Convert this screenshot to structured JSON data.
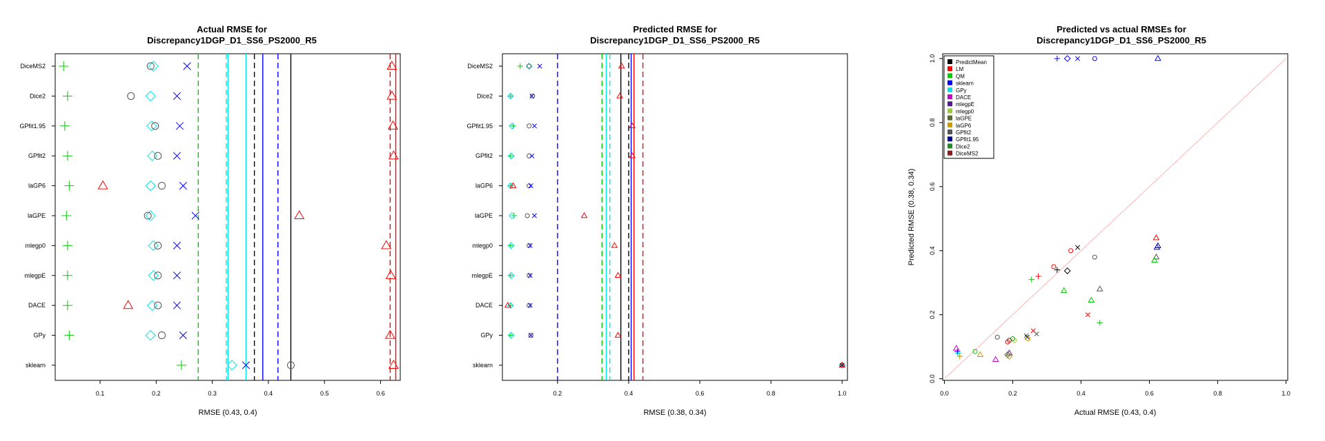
{
  "colors": {
    "PredictMean": "#000000",
    "LM": "#ff0000",
    "QM": "#00cc00",
    "sklearn": "#0000ff",
    "GPy": "#00e5e5",
    "DACE": "#cc00cc",
    "mlegpE": "#551a8b",
    "mlegp0": "#99cc33",
    "laGPE": "#556b2f",
    "laGP6": "#cc9900",
    "GPfit2": "#555555",
    "GPfit1.95": "#00008b",
    "Dice2": "#228b22",
    "DiceMS2": "#8b1a1a"
  },
  "chart_data": [
    {
      "type": "scatter",
      "title": [
        "Actual RMSE for",
        "Discrepancy1DGP_D1_SS6_PS2000_R5"
      ],
      "xlabel": "RMSE (0.43, 0.4)",
      "xlim": [
        0.02,
        0.635
      ],
      "xticks": [
        "0.1",
        "0.2",
        "0.3",
        "0.4",
        "0.5",
        "0.6"
      ],
      "categories": [
        "DiceMS2",
        "Dice2",
        "GPfit1.95",
        "GPfit2",
        "laGP6",
        "laGPE",
        "mlegp0",
        "mlegpE",
        "DACE",
        "GPy",
        "sklearn"
      ],
      "series": [
        {
          "key": "QM",
          "marker": "plus",
          "values": [
            0.035,
            0.042,
            0.037,
            0.042,
            0.045,
            0.04,
            0.042,
            0.042,
            0.042,
            0.045,
            0.245
          ]
        },
        {
          "key": "GPy",
          "marker": "diamond",
          "values": [
            0.195,
            0.19,
            0.192,
            0.193,
            0.19,
            0.19,
            0.195,
            0.195,
            0.193,
            0.19,
            0.335
          ]
        },
        {
          "key": "GPfit2",
          "marker": "circle",
          "values": [
            0.19,
            0.155,
            0.198,
            0.203,
            0.21,
            0.185,
            0.203,
            0.203,
            0.203,
            0.21,
            0.44
          ]
        },
        {
          "key": "sklearn",
          "marker": "cross",
          "values": [
            0.255,
            0.237,
            0.242,
            0.237,
            0.248,
            0.27,
            0.237,
            0.237,
            0.237,
            0.248,
            0.36
          ]
        },
        {
          "key": "LM",
          "marker": "triangle",
          "values": [
            0.62,
            0.62,
            0.622,
            0.623,
            0.105,
            0.455,
            0.61,
            0.618,
            0.15,
            0.617,
            0.623
          ]
        }
      ],
      "vlines": [
        {
          "x": 0.275,
          "key": "QM",
          "dashed": true
        },
        {
          "x": 0.325,
          "key": "GPy",
          "dashed": true
        },
        {
          "x": 0.328,
          "key": "GPy",
          "dashed": false
        },
        {
          "x": 0.36,
          "key": "GPy",
          "dashed": false
        },
        {
          "x": 0.375,
          "key": "PredictMean",
          "dashed": true
        },
        {
          "x": 0.39,
          "key": "sklearn",
          "dashed": false
        },
        {
          "x": 0.417,
          "key": "sklearn",
          "dashed": true
        },
        {
          "x": 0.44,
          "key": "PredictMean",
          "dashed": false
        },
        {
          "x": 0.617,
          "key": "LM",
          "dashed": true
        },
        {
          "x": 0.627,
          "key": "LM",
          "dashed": false
        }
      ]
    },
    {
      "type": "scatter",
      "title": [
        "Predicted RMSE for",
        "Discrepancy1DGP_D1_SS6_PS2000_R5"
      ],
      "xlabel": "RMSE (0.38, 0.34)",
      "xlim": [
        0.045,
        1.015
      ],
      "xticks": [
        "0.2",
        "0.4",
        "0.6",
        "0.8",
        "1.0"
      ],
      "categories": [
        "DiceMS2",
        "Dice2",
        "GPfit1.95",
        "GPfit2",
        "laGP6",
        "laGPE",
        "mlegp0",
        "mlegpE",
        "DACE",
        "GPy",
        "sklearn"
      ],
      "series": [
        {
          "key": "QM",
          "marker": "plus",
          "values": [
            0.095,
            0.068,
            0.075,
            0.068,
            0.068,
            0.078,
            0.068,
            0.068,
            0.068,
            0.068,
            1.0
          ]
        },
        {
          "key": "GPy",
          "marker": "diamond",
          "values": [
            0.12,
            0.068,
            0.072,
            0.07,
            0.068,
            0.072,
            0.07,
            0.07,
            0.068,
            0.07,
            1.0
          ]
        },
        {
          "key": "GPfit2",
          "marker": "circle",
          "values": [
            0.12,
            0.13,
            0.12,
            0.12,
            0.12,
            0.115,
            0.12,
            0.12,
            0.12,
            0.125,
            1.0
          ]
        },
        {
          "key": "sklearn",
          "marker": "cross",
          "values": [
            0.15,
            0.128,
            0.135,
            0.128,
            0.125,
            0.135,
            0.123,
            0.123,
            0.123,
            0.125,
            1.0
          ]
        },
        {
          "key": "LM",
          "marker": "triangle",
          "values": [
            0.38,
            0.375,
            0.41,
            0.41,
            0.075,
            0.275,
            0.36,
            0.37,
            0.06,
            0.37,
            1.0
          ]
        }
      ],
      "vlines": [
        {
          "x": 0.2,
          "key": "sklearn",
          "dashed": true
        },
        {
          "x": 0.325,
          "key": "QM",
          "dashed": true
        },
        {
          "x": 0.337,
          "key": "GPy",
          "dashed": false
        },
        {
          "x": 0.347,
          "key": "GPy",
          "dashed": true
        },
        {
          "x": 0.378,
          "key": "PredictMean",
          "dashed": false
        },
        {
          "x": 0.4,
          "key": "PredictMean",
          "dashed": true
        },
        {
          "x": 0.407,
          "key": "sklearn",
          "dashed": false
        },
        {
          "x": 0.415,
          "key": "LM",
          "dashed": false
        },
        {
          "x": 0.44,
          "key": "LM",
          "dashed": true
        }
      ]
    },
    {
      "type": "scatter",
      "title": [
        "Predicted vs actual RMSEs for",
        "Discrepancy1DGP_D1_SS6_PS2000_R5"
      ],
      "xlabel": "Actual RMSE (0.43, 0.4)",
      "ylabel": "Predicted RMSE (0.38, 0.34)",
      "xlim": [
        -0.005,
        1.005
      ],
      "ylim": [
        -0.005,
        1.015
      ],
      "xticks": [
        "0.0",
        "0.2",
        "0.4",
        "0.6",
        "0.8",
        "1.0"
      ],
      "yticks": [
        "0.0",
        "0.2",
        "0.4",
        "0.6",
        "0.8",
        "1.0"
      ],
      "diagonal_color": "#ffb3b3",
      "legend_position": "top-left",
      "legend": [
        "PredictMean",
        "LM",
        "QM",
        "sklearn",
        "GPy",
        "DACE",
        "mlegpE",
        "mlegp0",
        "laGPE",
        "laGP6",
        "GPfit2",
        "GPfit1.95",
        "Dice2",
        "DiceMS2"
      ],
      "points": [
        {
          "key": "sklearn",
          "marker": "plus",
          "x": 0.33,
          "y": 1.0
        },
        {
          "key": "sklearn",
          "marker": "diamond",
          "x": 0.36,
          "y": 1.0
        },
        {
          "key": "sklearn",
          "marker": "cross",
          "x": 0.39,
          "y": 1.0
        },
        {
          "key": "sklearn",
          "marker": "circle",
          "x": 0.44,
          "y": 1.0
        },
        {
          "key": "sklearn",
          "marker": "triangle",
          "x": 0.625,
          "y": 1.0
        },
        {
          "key": "LM",
          "marker": "triangle",
          "x": 0.62,
          "y": 0.44
        },
        {
          "key": "GPfit1.95",
          "marker": "triangle",
          "x": 0.625,
          "y": 0.415
        },
        {
          "key": "sklearn",
          "marker": "triangle",
          "x": 0.622,
          "y": 0.41
        },
        {
          "key": "PredictMean",
          "marker": "cross",
          "x": 0.39,
          "y": 0.41
        },
        {
          "key": "LM",
          "marker": "circle",
          "x": 0.37,
          "y": 0.4
        },
        {
          "key": "GPfit2",
          "marker": "triangle",
          "x": 0.62,
          "y": 0.38
        },
        {
          "key": "QM",
          "marker": "triangle",
          "x": 0.615,
          "y": 0.37
        },
        {
          "key": "GPfit2",
          "marker": "circle",
          "x": 0.44,
          "y": 0.38
        },
        {
          "key": "LM",
          "marker": "circle",
          "x": 0.32,
          "y": 0.35
        },
        {
          "key": "PredictMean",
          "marker": "plus",
          "x": 0.33,
          "y": 0.34
        },
        {
          "key": "PredictMean",
          "marker": "diamond",
          "x": 0.36,
          "y": 0.337
        },
        {
          "key": "LM",
          "marker": "plus",
          "x": 0.275,
          "y": 0.32
        },
        {
          "key": "QM",
          "marker": "plus",
          "x": 0.255,
          "y": 0.31
        },
        {
          "key": "GPfit2",
          "marker": "triangle",
          "x": 0.455,
          "y": 0.28
        },
        {
          "key": "QM",
          "marker": "triangle",
          "x": 0.35,
          "y": 0.275
        },
        {
          "key": "QM",
          "marker": "triangle",
          "x": 0.43,
          "y": 0.245
        },
        {
          "key": "LM",
          "marker": "cross",
          "x": 0.42,
          "y": 0.2
        },
        {
          "key": "QM",
          "marker": "plus",
          "x": 0.455,
          "y": 0.175
        },
        {
          "key": "LM",
          "marker": "cross",
          "x": 0.26,
          "y": 0.15
        },
        {
          "key": "GPfit2",
          "marker": "cross",
          "x": 0.27,
          "y": 0.14
        },
        {
          "key": "GPfit2",
          "marker": "circle",
          "x": 0.155,
          "y": 0.13
        },
        {
          "key": "laGPE",
          "marker": "cross",
          "x": 0.24,
          "y": 0.135
        },
        {
          "key": "GPfit1.95",
          "marker": "cross",
          "x": 0.242,
          "y": 0.13
        },
        {
          "key": "laGP6",
          "marker": "circle",
          "x": 0.245,
          "y": 0.125
        },
        {
          "key": "Dice2",
          "marker": "circle",
          "x": 0.2,
          "y": 0.125
        },
        {
          "key": "DiceMS2",
          "marker": "circle",
          "x": 0.19,
          "y": 0.12
        },
        {
          "key": "LM",
          "marker": "circle",
          "x": 0.185,
          "y": 0.115
        },
        {
          "key": "mlegp0",
          "marker": "circle",
          "x": 0.205,
          "y": 0.12
        },
        {
          "key": "DACE",
          "marker": "triangle",
          "x": 0.15,
          "y": 0.06
        },
        {
          "key": "mlegpE",
          "marker": "triangle",
          "x": 0.19,
          "y": 0.08
        },
        {
          "key": "laGP6",
          "marker": "diamond",
          "x": 0.19,
          "y": 0.07
        },
        {
          "key": "laGPE",
          "marker": "diamond",
          "x": 0.185,
          "y": 0.075
        },
        {
          "key": "QM",
          "marker": "circle",
          "x": 0.09,
          "y": 0.085
        },
        {
          "key": "laGP6",
          "marker": "triangle",
          "x": 0.105,
          "y": 0.075
        },
        {
          "key": "GPy",
          "marker": "plus",
          "x": 0.04,
          "y": 0.08
        },
        {
          "key": "DACE",
          "marker": "triangle",
          "x": 0.035,
          "y": 0.095
        },
        {
          "key": "sklearn",
          "marker": "plus",
          "x": 0.038,
          "y": 0.085
        },
        {
          "key": "mlegp0",
          "marker": "plus",
          "x": 0.045,
          "y": 0.07
        },
        {
          "key": "laGP6",
          "marker": "plus",
          "x": 0.045,
          "y": 0.07
        }
      ]
    }
  ]
}
